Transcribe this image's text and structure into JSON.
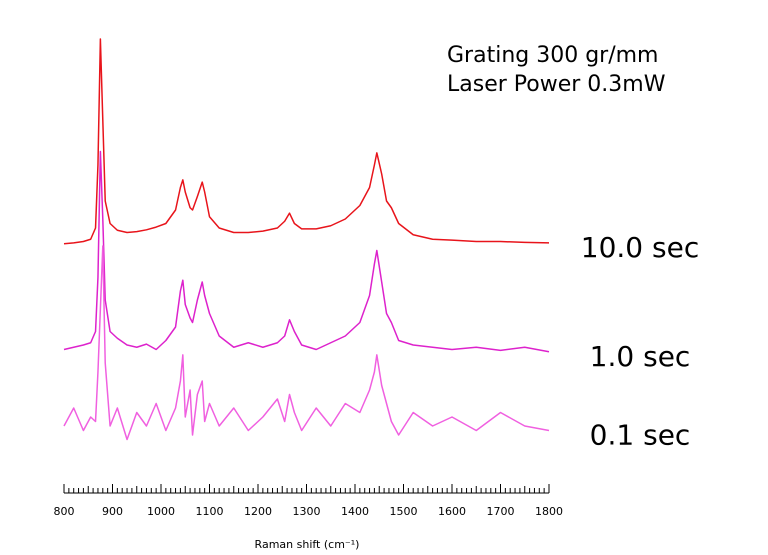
{
  "chart_data": {
    "type": "line",
    "annotations": [
      "Grating 300 gr/mm",
      "Laser Power 0.3mW"
    ],
    "xlabel": "Raman shift (cm⁻¹)",
    "xlim": [
      800,
      1800
    ],
    "xticks": [
      800,
      900,
      1000,
      1100,
      1200,
      1300,
      1400,
      1500,
      1600,
      1700,
      1800
    ],
    "ylim": [
      0,
      100
    ],
    "x": [
      800,
      820,
      840,
      855,
      865,
      870,
      875,
      880,
      885,
      895,
      910,
      930,
      950,
      970,
      990,
      1010,
      1030,
      1040,
      1045,
      1050,
      1060,
      1065,
      1075,
      1085,
      1090,
      1100,
      1120,
      1150,
      1180,
      1210,
      1240,
      1255,
      1265,
      1275,
      1290,
      1320,
      1350,
      1380,
      1410,
      1430,
      1440,
      1445,
      1455,
      1465,
      1475,
      1490,
      1520,
      1560,
      1600,
      1650,
      1700,
      1750,
      1800
    ],
    "series": [
      {
        "name": "10.0 sec",
        "color": "#e8141b",
        "values": [
          52.5,
          52.7,
          53,
          53.5,
          56,
          70,
          98,
          80,
          62,
          57,
          55.5,
          55,
          55.2,
          55.6,
          56.2,
          57,
          60,
          65,
          66.7,
          64,
          60.5,
          60,
          63,
          66.2,
          64,
          58.5,
          56,
          55,
          55,
          55.3,
          56,
          57.5,
          59.3,
          57,
          55.8,
          55.8,
          56.5,
          58,
          61,
          65,
          70,
          72.7,
          68,
          62,
          60.5,
          57,
          54.5,
          53.5,
          53.3,
          53,
          53,
          52.8,
          52.7
        ]
      },
      {
        "name": "1.0 sec",
        "color": "#dd22cc",
        "values": [
          29,
          29.5,
          30,
          30.5,
          33,
          45,
          73,
          58,
          40,
          33,
          31.5,
          30,
          29.5,
          30.2,
          29,
          31,
          34,
          42,
          44.4,
          39,
          36,
          35,
          40,
          44,
          41,
          37,
          32,
          29.5,
          30.5,
          29.5,
          30.5,
          32,
          35.6,
          33,
          30,
          29,
          30.5,
          32,
          35,
          41,
          48,
          51,
          44,
          37,
          35,
          31,
          30,
          29.5,
          29,
          29.5,
          28.8,
          29.5,
          28.5
        ]
      },
      {
        "name": "0.1 sec",
        "color": "#f060e0",
        "values": [
          12,
          16,
          11,
          14,
          13,
          24,
          38,
          52,
          26,
          12,
          16,
          9,
          15,
          12,
          17,
          11,
          16,
          22,
          27.8,
          14,
          20,
          10,
          19,
          22,
          13,
          17,
          12,
          16,
          11,
          14,
          18,
          13,
          19,
          15,
          11,
          16,
          12,
          17,
          15,
          20,
          24,
          27.8,
          21,
          17,
          13,
          10,
          15,
          12,
          14,
          11,
          15,
          12,
          11
        ]
      }
    ]
  }
}
